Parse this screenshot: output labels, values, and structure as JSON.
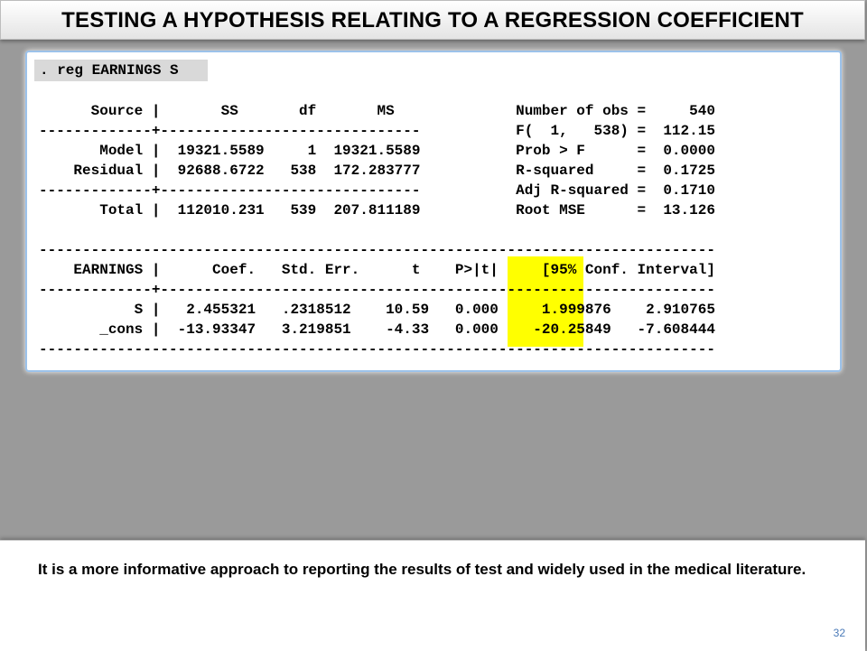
{
  "slide": {
    "title": "TESTING A HYPOTHESIS RELATING TO A REGRESSION COEFFICIENT",
    "command": ". reg EARNINGS S",
    "output_lines": [
      "      Source |       SS       df       MS              Number of obs =     540",
      "-------------+------------------------------           F(  1,   538) =  112.15",
      "       Model |  19321.5589     1  19321.5589           Prob > F      =  0.0000",
      "    Residual |  92688.6722   538  172.283777           R-squared     =  0.1725",
      "-------------+------------------------------           Adj R-squared =  0.1710",
      "       Total |  112010.231   539  207.811189           Root MSE      =  13.126",
      "",
      "------------------------------------------------------------------------------",
      "    EARNINGS |      Coef.   Std. Err.      t    P>|t|     [95% Conf. Interval]",
      "-------------+----------------------------------------------------------------",
      "           S |   2.455321   .2318512    10.59   0.000     1.999876    2.910765",
      "       _cons |  -13.93347   3.219851    -4.33   0.000    -20.25849   -7.608444",
      "------------------------------------------------------------------------------"
    ],
    "highlight_color": "#ffff00",
    "footer_text": "It is a more informative approach to reporting the results of test and widely used in the medical literature.",
    "page_number": "32"
  }
}
